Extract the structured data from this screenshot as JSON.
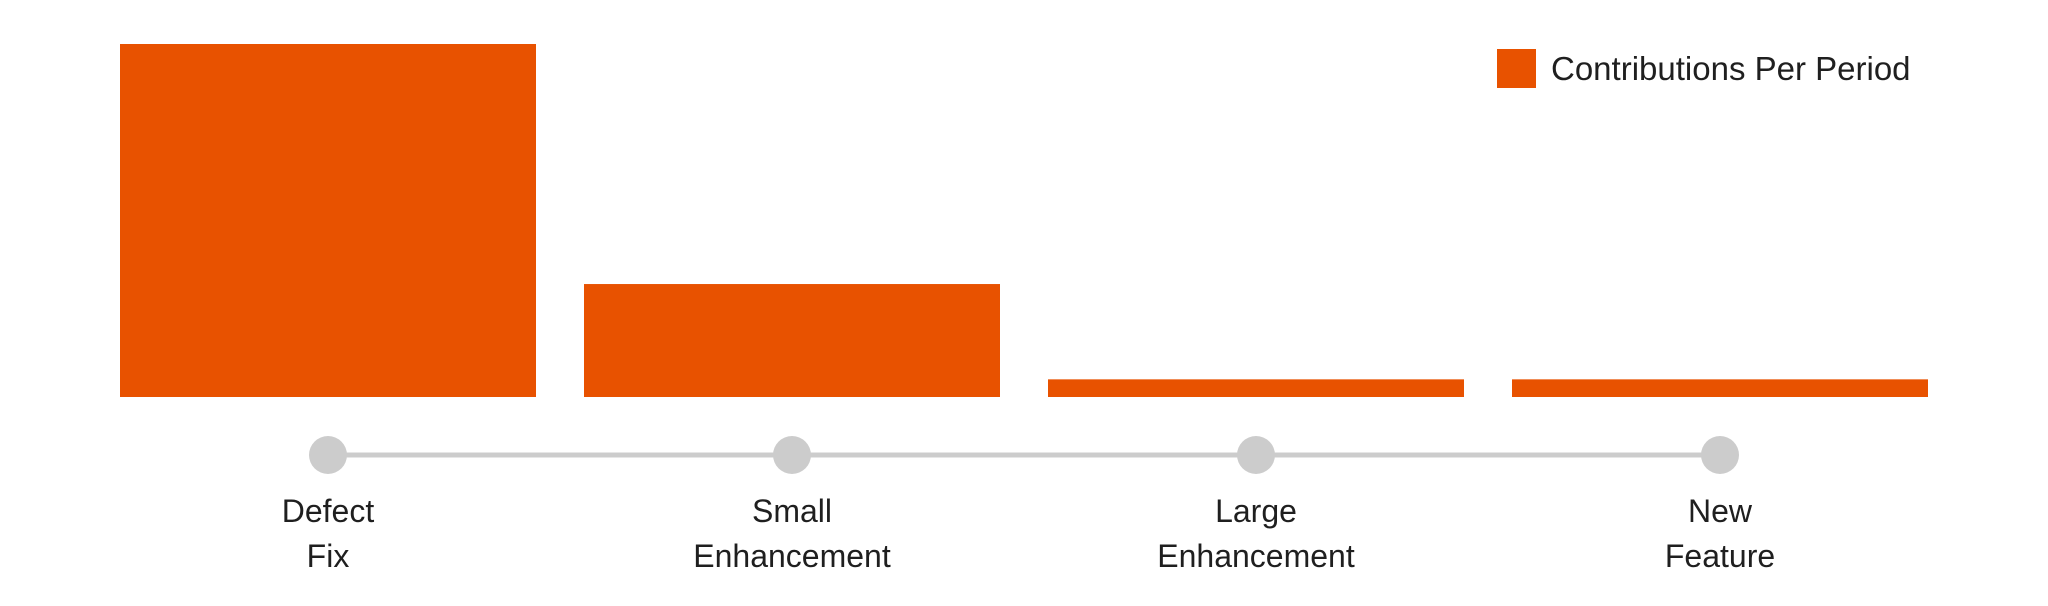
{
  "chart_data": {
    "type": "bar",
    "categories": [
      "Defect Fix",
      "Small Enhancement",
      "Large Enhancement",
      "New Feature"
    ],
    "category_lines": [
      [
        "Defect",
        "Fix"
      ],
      [
        "Small",
        "Enhancement"
      ],
      [
        "Large",
        "Enhancement"
      ],
      [
        "New",
        "Feature"
      ]
    ],
    "series": [
      {
        "name": "Contributions Per Period",
        "values": [
          100,
          32,
          5,
          5
        ]
      }
    ],
    "ylim": [
      0,
      100
    ],
    "grid": false,
    "legend": "top-right"
  },
  "colors": {
    "bar": "#e85200",
    "timeline": "#cccccc",
    "text": "#1f1f1f"
  }
}
